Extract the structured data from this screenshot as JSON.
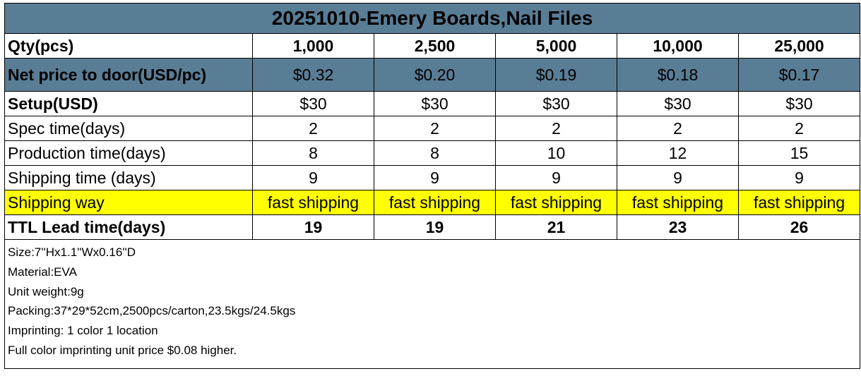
{
  "title": "20251010-Emery Boards,Nail Files",
  "quantities": {
    "label": "Qty(pcs)",
    "values": [
      "1,000",
      "2,500",
      "5,000",
      "10,000",
      "25,000"
    ]
  },
  "net_price": {
    "label": "Net price to door(USD/pc)",
    "values": [
      "$0.32",
      "$0.20",
      "$0.19",
      "$0.18",
      "$0.17"
    ]
  },
  "setup": {
    "label": "Setup(USD)",
    "values": [
      "$30",
      "$30",
      "$30",
      "$30",
      "$30"
    ]
  },
  "spec_time": {
    "label": "Spec time(days)",
    "values": [
      "2",
      "2",
      "2",
      "2",
      "2"
    ]
  },
  "production_time": {
    "label": "Production time(days)",
    "values": [
      "8",
      "8",
      "10",
      "12",
      "15"
    ]
  },
  "shipping_time": {
    "label": "Shipping time (days)",
    "values": [
      "9",
      "9",
      "9",
      "9",
      "9"
    ]
  },
  "shipping_way": {
    "label": "Shipping way",
    "values": [
      "fast shipping",
      "fast shipping",
      "fast shipping",
      "fast shipping",
      "fast shipping"
    ]
  },
  "lead_time": {
    "label": "TTL Lead time(days)",
    "values": [
      "19",
      "19",
      "21",
      "23",
      "26"
    ]
  },
  "notes": [
    "Size:7''Hx1.1''Wx0.16''D",
    "Material:EVA",
    "Unit weight:9g",
    "Packing:37*29*52cm,2500pcs/carton,23.5kgs/24.5kgs",
    "Imprinting: 1 color 1 location",
    "Full color imprinting unit price $0.08 higher."
  ],
  "colors": {
    "header_band": "#5a7d96",
    "highlight": "#ffff00",
    "border": "#000000"
  }
}
